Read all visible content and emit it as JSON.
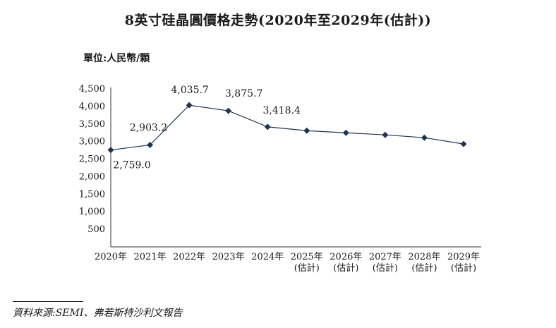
{
  "chart_data": {
    "type": "line",
    "title": "8英寸硅晶圓價格走勢(2020年至2029年(估計))",
    "unit_label": "單位:人民幣/顆",
    "categories": [
      "2020年",
      "2021年",
      "2022年",
      "2023年",
      "2024年",
      "2025年\n(估計)",
      "2026年\n(估計)",
      "2027年\n(估計)",
      "2028年\n(估計)",
      "2029年\n(估計)"
    ],
    "series": [
      {
        "values": [
          2759.0,
          2903.2,
          4035.7,
          3875.7,
          3418.4,
          3310,
          3250,
          3190,
          3110,
          2930
        ]
      }
    ],
    "data_labels": [
      "2,759.0",
      "2,903.2",
      "4,035.7",
      "3,875.7",
      "3,418.4",
      null,
      null,
      null,
      null,
      null
    ],
    "y_ticks": [
      500,
      1000,
      1500,
      2000,
      2500,
      3000,
      3500,
      4000,
      4500
    ],
    "y_tick_labels": [
      "500",
      "1,000",
      "1,500",
      "2,000",
      "2,500",
      "3,000",
      "3,500",
      "4,000",
      "4,500"
    ],
    "ylim": [
      0,
      4500
    ],
    "grid": false,
    "line_color": "#1e3553",
    "marker": "diamond"
  },
  "source": "資料來源:SEMI、弗若斯特沙利文報告"
}
